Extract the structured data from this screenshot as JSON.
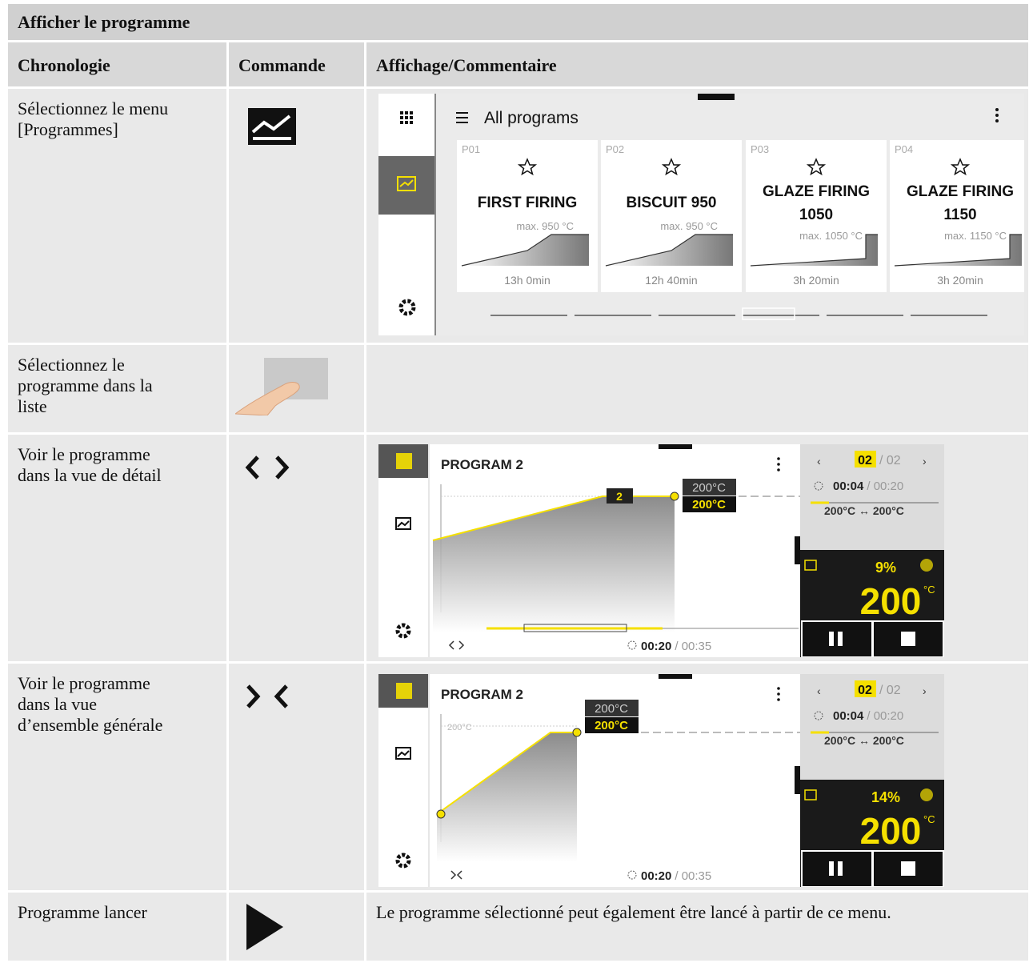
{
  "header": {
    "title": "Afficher le programme"
  },
  "table": {
    "columns": [
      "Chronologie",
      "Commande",
      "Affichage/Commentaire"
    ],
    "rows": [
      {
        "step": [
          "Sélectionnez le menu",
          "[Programmes]"
        ]
      },
      {
        "step": [
          "Sélectionnez le",
          "programme dans la",
          "liste"
        ]
      },
      {
        "step": [
          "Voir le programme",
          "dans la vue de détail"
        ]
      },
      {
        "step": [
          "Voir le programme",
          "dans la vue",
          "d’ensemble générale"
        ]
      },
      {
        "step": [
          "Programme lancer"
        ],
        "comment": "Le programme sélectionné peut également être lancé à partir de ce menu."
      }
    ]
  },
  "screen_programs": {
    "title": "All programs",
    "cards": [
      {
        "id": "P01",
        "name": [
          "FIRST FIRING"
        ],
        "max": "max. 950 °C",
        "duration": "13h 0min"
      },
      {
        "id": "P02",
        "name": [
          "BISCUIT 950"
        ],
        "max": "max. 950 °C",
        "duration": "12h 40min"
      },
      {
        "id": "P03",
        "name": [
          "GLAZE FIRING",
          "1050"
        ],
        "max": "max. 1050 °C",
        "duration": "3h 20min"
      },
      {
        "id": "P04",
        "name": [
          "GLAZE FIRING",
          "1150"
        ],
        "max": "max. 1150 °C",
        "duration": "3h 20min"
      }
    ]
  },
  "screen_detail": {
    "program": "PROGRAM 2",
    "segment": "2",
    "setpoint": "200°C",
    "actual": "200°C",
    "page": "02",
    "pages": "/ 02",
    "seg_time": "00:04",
    "seg_total": "/ 00:20",
    "range": "200°C ↔ 200°C",
    "progress": "9%",
    "temp": "200",
    "unit": "°C",
    "time": "00:20",
    "total": "/ 00:35"
  },
  "screen_overview": {
    "program": "PROGRAM 2",
    "axis": "200°C",
    "setpoint": "200°C",
    "actual": "200°C",
    "page": "02",
    "pages": "/ 02",
    "seg_time": "00:04",
    "seg_total": "/ 00:20",
    "range": "200°C ↔ 200°C",
    "progress": "14%",
    "temp": "200",
    "unit": "°C",
    "time": "00:20",
    "total": "/ 00:35"
  }
}
